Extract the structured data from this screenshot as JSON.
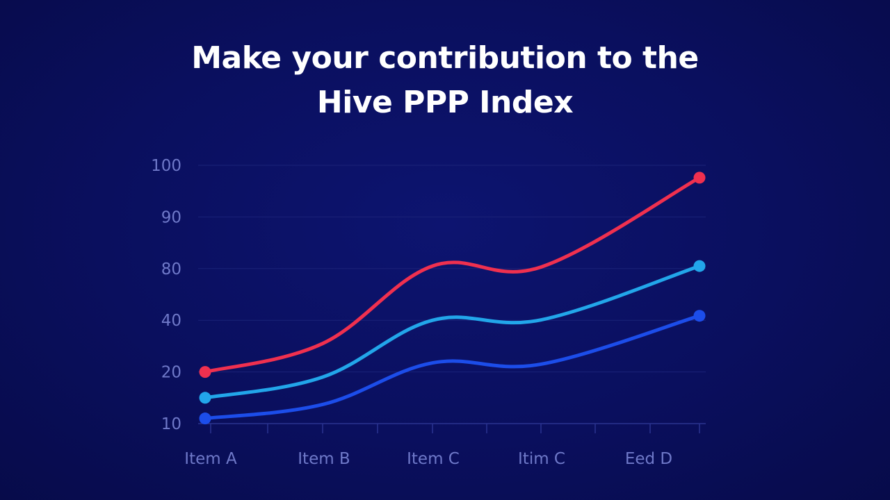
{
  "chart_data": {
    "type": "line",
    "title_lines": [
      "Make your contribution to the",
      "Hive PPP Index"
    ],
    "categories": [
      "Item A",
      "Item B",
      "Item C",
      "Itim C",
      "Eed D"
    ],
    "y_ticks": [
      "10",
      "20",
      "40",
      "80",
      "90",
      "100"
    ],
    "grid": true,
    "series": [
      {
        "color": "#f0304f",
        "values": [
          20,
          31,
          80.5,
          80.3,
          97.6
        ]
      },
      {
        "color": "#22a6ea",
        "values": [
          15,
          19,
          40,
          40.3,
          80.5
        ]
      },
      {
        "color": "#1c4dea",
        "values": [
          11,
          13.7,
          23.5,
          23,
          43.5
        ]
      }
    ]
  }
}
